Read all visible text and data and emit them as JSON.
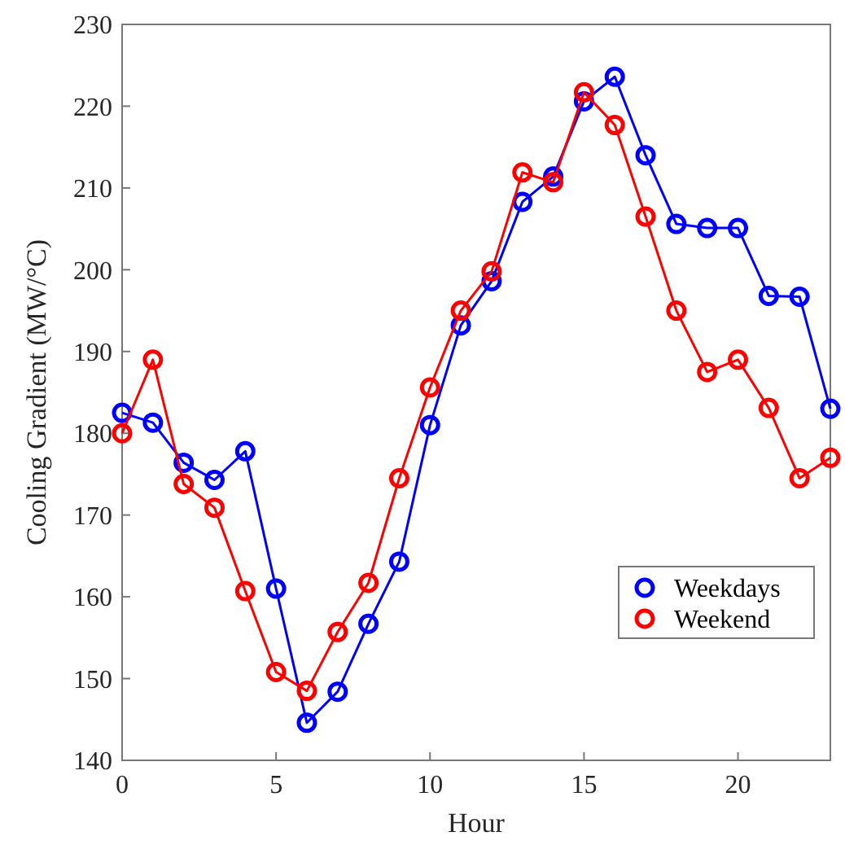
{
  "chart_data": {
    "type": "line",
    "xlabel": "Hour",
    "ylabel": "Cooling Gradient (MW/°C)",
    "x": [
      0,
      1,
      2,
      3,
      4,
      5,
      6,
      7,
      8,
      9,
      10,
      11,
      12,
      13,
      14,
      15,
      16,
      17,
      18,
      19,
      20,
      21,
      22,
      23
    ],
    "series": [
      {
        "name": "Weekdays",
        "color": "#0000ff",
        "values": [
          182.5,
          181.3,
          176.4,
          174.3,
          177.8,
          161,
          144.6,
          148.4,
          156.7,
          164.3,
          181,
          193.2,
          198.6,
          208.3,
          211.4,
          220.6,
          223.6,
          214,
          205.6,
          205.1,
          205.1,
          196.8,
          196.7,
          183
        ]
      },
      {
        "name": "Weekend",
        "color": "#ff0000",
        "values": [
          180,
          189,
          173.8,
          170.9,
          160.7,
          150.8,
          148.5,
          155.7,
          161.7,
          174.5,
          185.6,
          195,
          199.8,
          211.9,
          210.7,
          221.7,
          217.7,
          206.5,
          195,
          187.5,
          189,
          183.1,
          174.5,
          177
        ]
      }
    ],
    "xlim": [
      0,
      23
    ],
    "xticks": [
      0,
      5,
      10,
      15,
      20
    ],
    "ylim": [
      140,
      230
    ],
    "yticks": [
      140,
      150,
      160,
      170,
      180,
      190,
      200,
      210,
      220,
      230
    ],
    "grid": false,
    "legend": "bottom right",
    "marker": "circle",
    "line_style": "solid"
  }
}
